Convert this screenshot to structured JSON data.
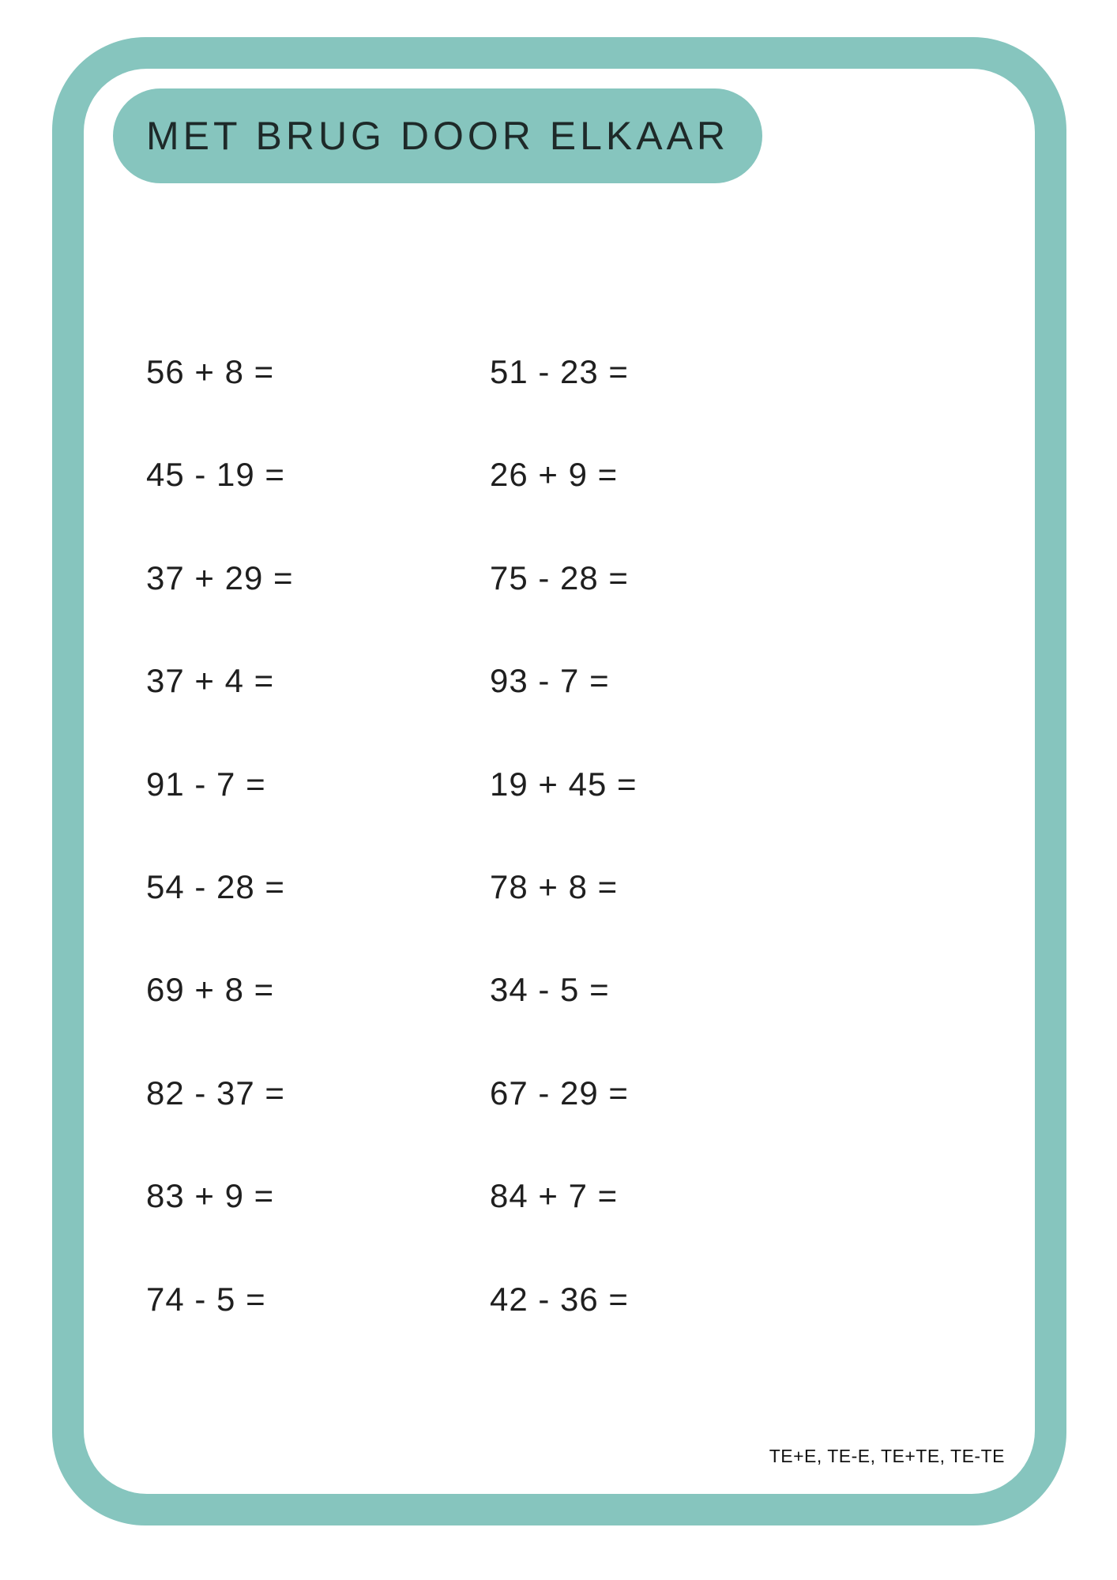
{
  "header": {
    "title": "MET BRUG DOOR ELKAAR"
  },
  "problems": {
    "rows": [
      {
        "left": "56 + 8 =",
        "right": "51 - 23 ="
      },
      {
        "left": "45 - 19 =",
        "right": "26 + 9 ="
      },
      {
        "left": "37 + 29 =",
        "right": "75 - 28 ="
      },
      {
        "left": "37 + 4 =",
        "right": "93 - 7 ="
      },
      {
        "left": "91 - 7 =",
        "right": "19 + 45 ="
      },
      {
        "left": "54 - 28 =",
        "right": "78 + 8 ="
      },
      {
        "left": "69 + 8 =",
        "right": "34 - 5 ="
      },
      {
        "left": "82 - 37 =",
        "right": "67 - 29 ="
      },
      {
        "left": "83 + 9 =",
        "right": "84 + 7 ="
      },
      {
        "left": "74 - 5 =",
        "right": "42 - 36 ="
      }
    ]
  },
  "footer": {
    "note": "TE+E, TE-E, TE+TE, TE-TE"
  },
  "colors": {
    "accent_teal": "#86C5BE",
    "title_text": "#1e2a29",
    "problem_text": "#1f1f1f",
    "background": "#ffffff"
  }
}
